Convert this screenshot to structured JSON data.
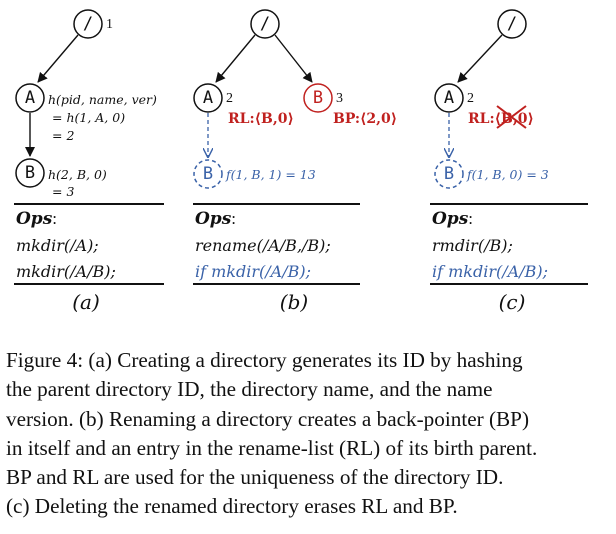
{
  "figure": {
    "panels": [
      {
        "id": "a",
        "nodes": [
          {
            "label": "/",
            "number": "1"
          },
          {
            "label": "A",
            "number": ""
          },
          {
            "label": "B",
            "number": ""
          }
        ],
        "annotations": {
          "a_hash_1": "h(pid, name, ver)",
          "a_hash_2": "= h(1, A, 0)",
          "a_hash_3": "= 2",
          "b_hash_1": "h(2, B, 0)",
          "b_hash_2": "= 3"
        },
        "ops_heading": "Ops",
        "ops_colon": ":",
        "ops": [
          "mkdir(/A);",
          "mkdir(/A/B);"
        ],
        "label": "(a)"
      },
      {
        "id": "b",
        "nodes": [
          {
            "label": "/",
            "number": ""
          },
          {
            "label": "A",
            "number": "2"
          },
          {
            "label": "B",
            "number": "3"
          },
          {
            "label": "B",
            "number": ""
          }
        ],
        "annotations": {
          "rl": "RL:⟨B,0⟩",
          "bp": "BP:⟨2,0⟩",
          "hash": "f(1, B, 1) = 13"
        },
        "ops_heading": "Ops",
        "ops_colon": ":",
        "ops": [
          "rename(/A/B,/B);",
          "if mkdir(/A/B);"
        ],
        "label": "(b)"
      },
      {
        "id": "c",
        "nodes": [
          {
            "label": "/",
            "number": ""
          },
          {
            "label": "A",
            "number": "2"
          },
          {
            "label": "B",
            "number": ""
          }
        ],
        "annotations": {
          "rl_prefix": "RL:",
          "rl_struck": "⟨B,0⟩",
          "hash": "f(1, B, 0) = 3"
        },
        "ops_heading": "Ops",
        "ops_colon": ":",
        "ops": [
          "rmdir(/B);",
          "if mkdir(/A/B);"
        ],
        "label": "(c)"
      }
    ],
    "colors": {
      "ink": "#111111",
      "red": "#c0211f",
      "blue": "#3a62a8"
    }
  },
  "caption": [
    "Figure 4:  (a) Creating a directory generates its ID by hashing",
    "the parent directory ID, the directory name, and the name",
    "version. (b) Renaming a directory creates a back-pointer (BP)",
    "in itself and an entry in the rename-list (RL) of its birth parent.",
    "BP and RL are used for the uniqueness of the directory ID.",
    "(c) Deleting the renamed directory erases RL and BP."
  ]
}
